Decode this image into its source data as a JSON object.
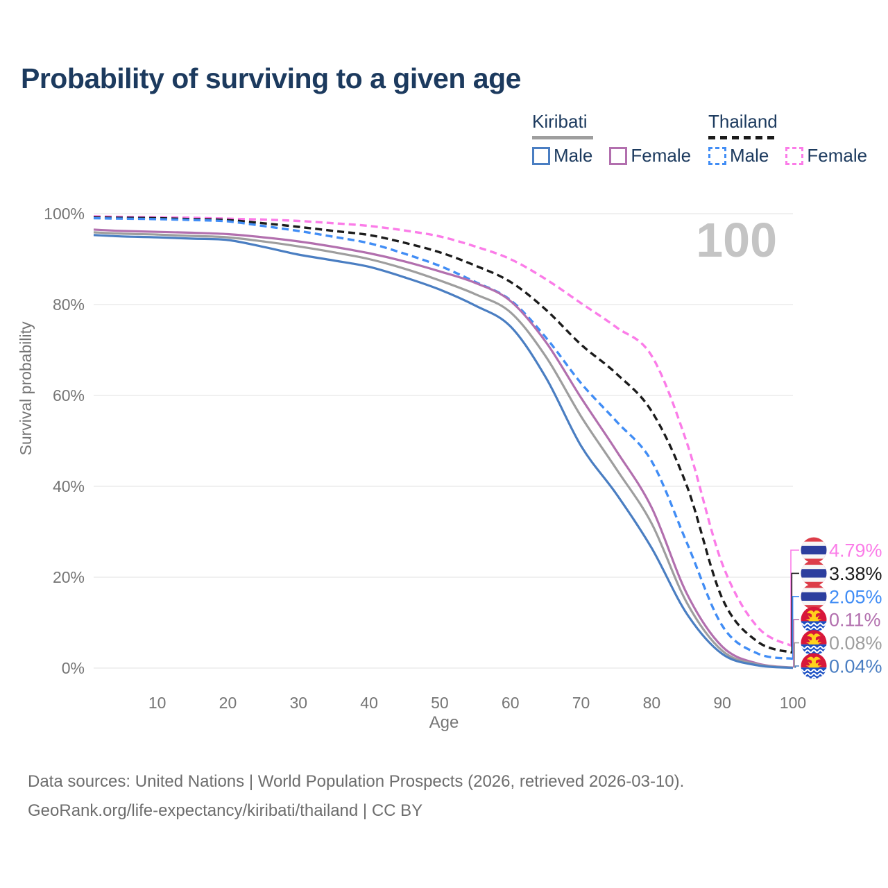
{
  "page": {
    "title": "Probability of surviving to a given age"
  },
  "legend": {
    "groups": [
      {
        "name": "Kiribati",
        "line_style": "solid",
        "underline_color": "#9e9e9e",
        "items": [
          {
            "label": "Male",
            "color": "#4a7ec2"
          },
          {
            "label": "Female",
            "color": "#b26fae"
          }
        ]
      },
      {
        "name": "Thailand",
        "line_style": "dashed",
        "underline_color": "#1b1b1b",
        "items": [
          {
            "label": "Male",
            "color": "#418df5"
          },
          {
            "label": "Female",
            "color": "#fb7ce8"
          }
        ]
      }
    ]
  },
  "footer": {
    "line1": "Data sources: United Nations | World Population Prospects (2026, retrieved 2026-03-10).",
    "line2": "GeoRank.org/life-expectancy/kiribati/thailand | CC BY"
  },
  "chart_data": {
    "type": "line",
    "title": "Probability of surviving to a given age",
    "xlabel": "Age",
    "ylabel": "Survival probability",
    "xlim": [
      1,
      100
    ],
    "ylim": [
      0,
      100
    ],
    "grid": "horizontal",
    "watermark": "100",
    "x_ticks": [
      "10",
      "20",
      "30",
      "40",
      "50",
      "60",
      "70",
      "80",
      "90",
      "100"
    ],
    "x_tick_values": [
      10,
      20,
      30,
      40,
      50,
      60,
      70,
      80,
      90,
      100
    ],
    "y_ticks": [
      "0%",
      "20%",
      "40%",
      "60%",
      "80%",
      "100%"
    ],
    "y_tick_values": [
      0,
      20,
      40,
      60,
      80,
      100
    ],
    "ages": [
      1,
      5,
      10,
      15,
      20,
      25,
      30,
      35,
      40,
      45,
      50,
      55,
      60,
      65,
      70,
      75,
      80,
      85,
      90,
      95,
      100
    ],
    "series": [
      {
        "name": "Thailand Female",
        "country": "thailand",
        "group": "Female",
        "style": "dashed",
        "color": "#fb7ce8",
        "end_label": "4.79%",
        "flag": "thailand",
        "values": [
          99.4,
          99.3,
          99.2,
          99.1,
          98.9,
          98.7,
          98.4,
          97.9,
          97.3,
          96.3,
          95.0,
          92.8,
          90.0,
          85.6,
          80.3,
          75.0,
          68.7,
          49.5,
          22.9,
          9.0,
          4.79
        ]
      },
      {
        "name": "Thailand Both sexes",
        "country": "thailand",
        "group": "Both sexes",
        "style": "dashed",
        "color": "#1b1b1b",
        "end_label": "3.38%",
        "flag": "thailand",
        "values": [
          99.2,
          99.1,
          99.0,
          98.8,
          98.6,
          97.9,
          97.1,
          96.2,
          95.3,
          93.6,
          91.5,
          88.6,
          85.0,
          78.9,
          71.2,
          64.8,
          56.5,
          40.0,
          15.3,
          5.8,
          3.38
        ]
      },
      {
        "name": "Thailand Male",
        "country": "thailand",
        "group": "Male",
        "style": "dashed",
        "color": "#418df5",
        "end_label": "2.05%",
        "flag": "thailand",
        "values": [
          99.0,
          98.9,
          98.8,
          98.6,
          98.3,
          97.3,
          96.2,
          94.9,
          93.5,
          91.2,
          88.5,
          85.0,
          81.0,
          72.8,
          62.7,
          54.3,
          45.5,
          27.5,
          9.3,
          3.2,
          2.05
        ]
      },
      {
        "name": "Kiribati Female",
        "country": "kiribati",
        "group": "Female",
        "style": "solid",
        "color": "#b26fae",
        "end_label": "0.11%",
        "flag": "kiribati",
        "values": [
          96.5,
          96.2,
          96.0,
          95.8,
          95.5,
          94.8,
          93.9,
          92.7,
          91.3,
          89.5,
          87.3,
          84.8,
          80.8,
          71.8,
          59.5,
          47.8,
          35.3,
          16.3,
          4.7,
          1.0,
          0.11
        ]
      },
      {
        "name": "Kiribati Both sexes",
        "country": "kiribati",
        "group": "Both sexes",
        "style": "solid",
        "color": "#9e9e9e",
        "end_label": "0.08%",
        "flag": "kiribati",
        "values": [
          95.9,
          95.6,
          95.4,
          95.1,
          94.8,
          93.9,
          92.8,
          91.5,
          90.0,
          87.9,
          85.3,
          82.3,
          78.3,
          68.6,
          55.4,
          43.8,
          31.8,
          14.3,
          3.8,
          0.8,
          0.08
        ]
      },
      {
        "name": "Kiribati Male",
        "country": "kiribati",
        "group": "Male",
        "style": "solid",
        "color": "#4a7ec2",
        "end_label": "0.04%",
        "flag": "kiribati",
        "values": [
          95.3,
          95.0,
          94.8,
          94.5,
          94.2,
          92.7,
          91.0,
          89.7,
          88.3,
          86.0,
          83.3,
          79.8,
          75.2,
          64.0,
          48.9,
          38.3,
          26.4,
          11.9,
          3.1,
          0.6,
          0.04
        ]
      }
    ],
    "colors": {
      "title": "#1c3a5e",
      "axis_text": "#757575",
      "grid": "#e8e8e8",
      "watermark": "#c4c4c4",
      "footer_text": "#6d6d6d",
      "flag_thailand": [
        "#dd3d49",
        "#f6f6f6",
        "#2c3e9e"
      ],
      "flag_kiribati": [
        "#d8173a",
        "#1a4fc4",
        "#ffd21c",
        "#ffffff"
      ]
    }
  }
}
